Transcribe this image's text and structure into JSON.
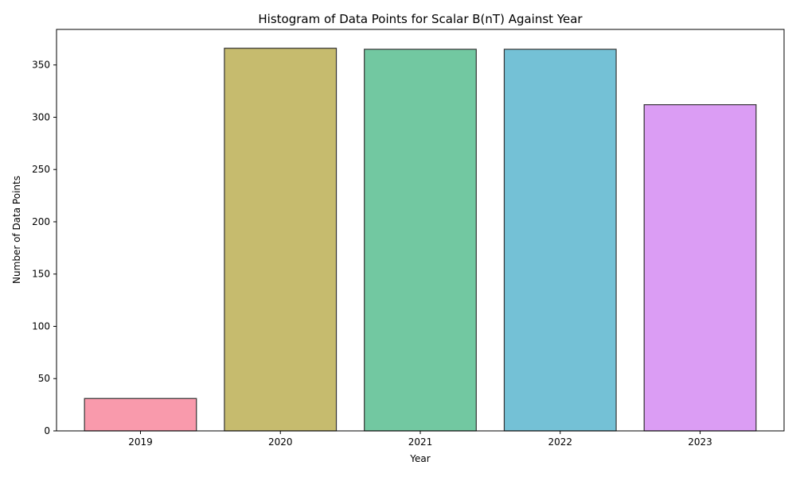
{
  "chart_data": {
    "type": "bar",
    "title": "Histogram of Data Points for Scalar B(nT) Against Year",
    "xlabel": "Year",
    "ylabel": "Number of Data Points",
    "categories": [
      "2019",
      "2020",
      "2021",
      "2022",
      "2023"
    ],
    "values": [
      31,
      366,
      365,
      365,
      312
    ],
    "colors": [
      "#f99aac",
      "#c6bb6e",
      "#72c8a1",
      "#74c1d6",
      "#db9df4"
    ],
    "edge_color": "#333333",
    "ylim": [
      0,
      384
    ],
    "yticks": [
      0,
      50,
      100,
      150,
      200,
      250,
      300,
      350
    ],
    "grid": false,
    "legend": "none"
  }
}
